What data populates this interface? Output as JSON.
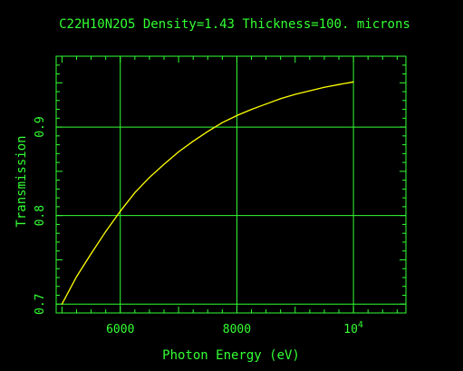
{
  "colors": {
    "background": "#000000",
    "axes": "#33ff33",
    "curve": "#ffff00"
  },
  "chart_data": {
    "type": "line",
    "title": "C22H10N2O5 Density=1.43 Thickness=100. microns",
    "xlabel": "Photon Energy (eV)",
    "ylabel": "Transmission",
    "xlim": [
      4900,
      10900
    ],
    "ylim": [
      0.69,
      0.98
    ],
    "grid": true,
    "x_ticks": [
      {
        "value": 6000,
        "label": "6000"
      },
      {
        "value": 8000,
        "label": "8000"
      },
      {
        "value": 10000,
        "label": "10",
        "exponent": "4"
      }
    ],
    "y_ticks": [
      {
        "value": 0.7,
        "label": "0.7"
      },
      {
        "value": 0.8,
        "label": "0.8"
      },
      {
        "value": 0.9,
        "label": "0.9"
      }
    ],
    "series": [
      {
        "x": [
          5000,
          5250,
          5500,
          5750,
          6000,
          6250,
          6500,
          6750,
          7000,
          7250,
          7500,
          7750,
          8000,
          8250,
          8500,
          8750,
          9000,
          9250,
          9500,
          9750,
          10000
        ],
        "y": [
          0.7,
          0.731,
          0.757,
          0.782,
          0.805,
          0.826,
          0.843,
          0.858,
          0.872,
          0.884,
          0.895,
          0.905,
          0.913,
          0.92,
          0.926,
          0.932,
          0.937,
          0.941,
          0.945,
          0.948,
          0.951
        ]
      }
    ]
  }
}
